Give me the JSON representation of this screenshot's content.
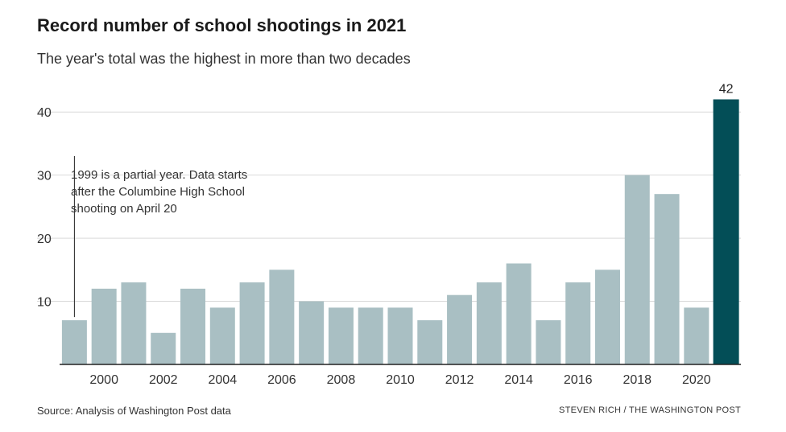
{
  "chart_data": {
    "type": "bar",
    "title": "Record number of school shootings in 2021",
    "subtitle": "The year's total was the highest in more than two decades",
    "categories": [
      1999,
      2000,
      2001,
      2002,
      2003,
      2004,
      2005,
      2006,
      2007,
      2008,
      2009,
      2010,
      2011,
      2012,
      2013,
      2014,
      2015,
      2016,
      2017,
      2018,
      2019,
      2020,
      2021
    ],
    "values": [
      7,
      12,
      13,
      5,
      12,
      9,
      13,
      15,
      10,
      9,
      9,
      9,
      7,
      11,
      13,
      16,
      7,
      13,
      15,
      30,
      27,
      9,
      42
    ],
    "x_tick_labels": [
      "2000",
      "2002",
      "2004",
      "2006",
      "2008",
      "2010",
      "2012",
      "2014",
      "2016",
      "2018",
      "2020"
    ],
    "y_ticks": [
      10,
      20,
      30,
      40
    ],
    "ylim": [
      0,
      42
    ],
    "grid": true,
    "highlight_category": 2021,
    "highlight_value_label": "42",
    "annotation": [
      "1999 is a partial year. Data starts",
      "after the Columbine High School",
      "shooting on April 20"
    ],
    "colors": {
      "bar": "#a9bfc3",
      "highlight": "#034e57",
      "grid": "#d9d9d9",
      "axis": "#222222"
    },
    "source": "Source: Analysis of Washington Post data",
    "credit": "STEVEN RICH / THE WASHINGTON POST"
  }
}
